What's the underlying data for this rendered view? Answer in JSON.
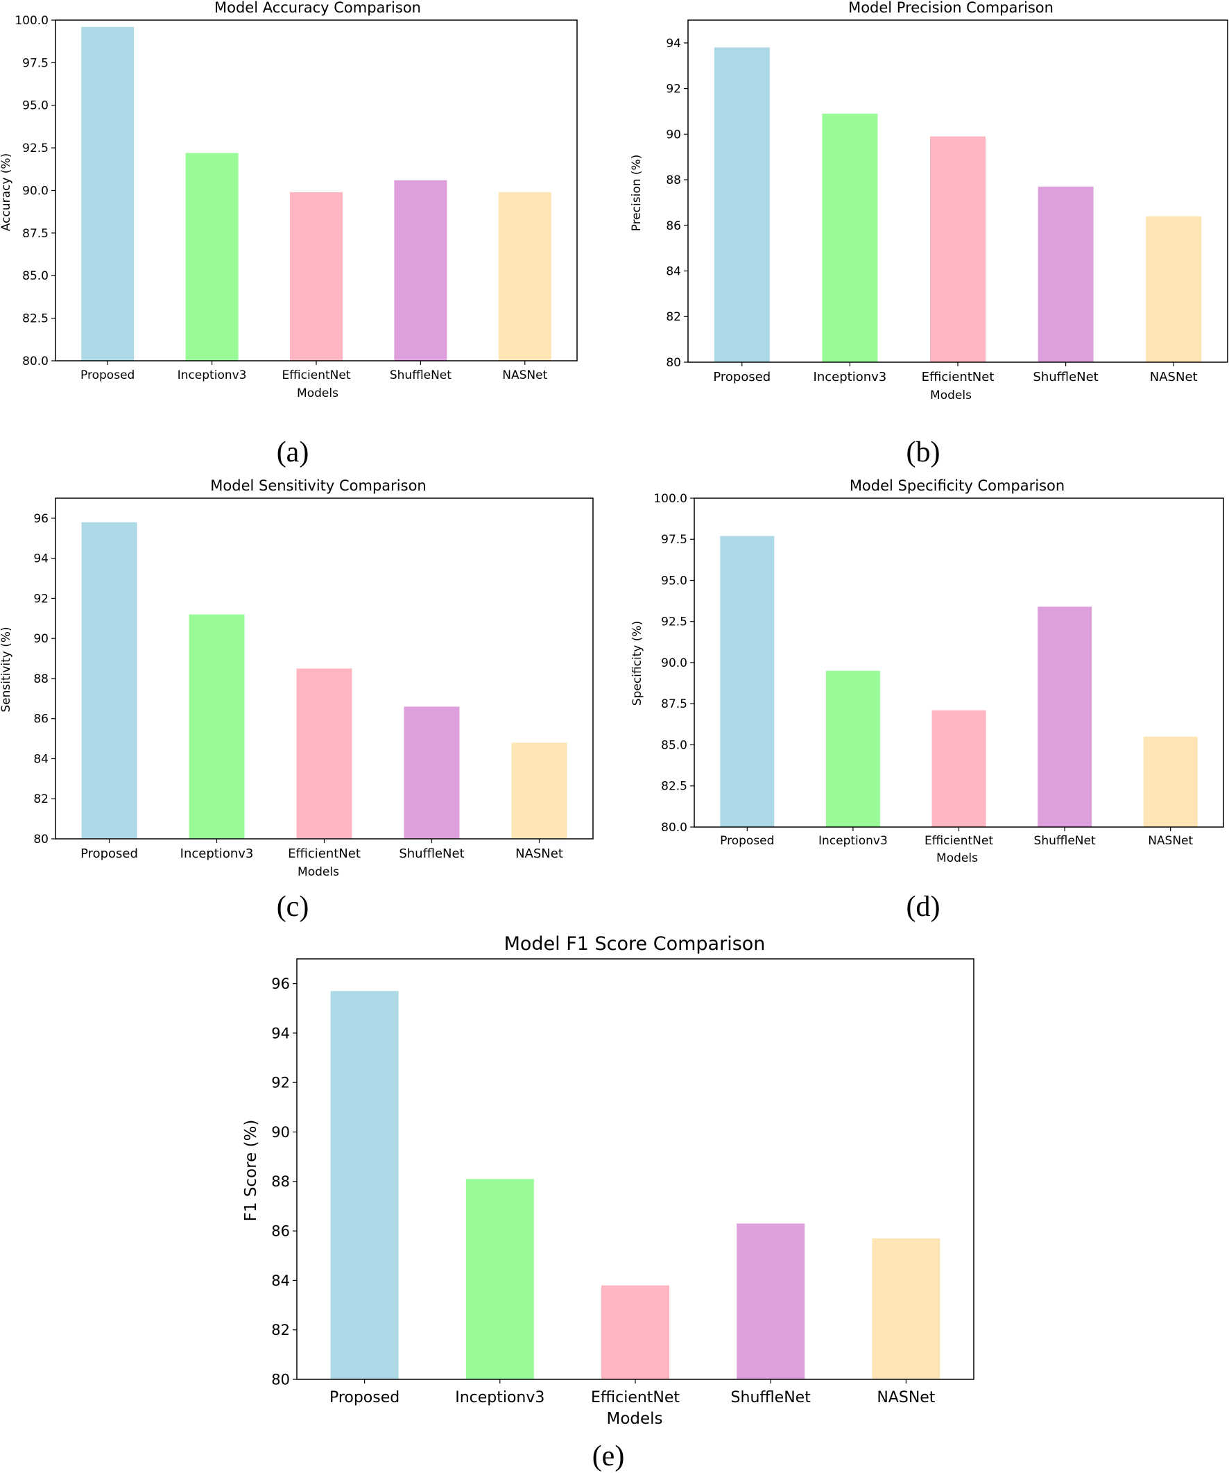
{
  "chart_data": [
    {
      "id": "a",
      "type": "bar",
      "title": "Model Accuracy Comparison",
      "xlabel": "Models",
      "ylabel": "Accuracy (%)",
      "categories": [
        "Proposed",
        "Inceptionv3",
        "EfficientNet",
        "ShuffleNet",
        "NASNet"
      ],
      "values": [
        99.6,
        92.2,
        89.9,
        90.6,
        89.9
      ],
      "ylim": [
        80,
        100
      ],
      "yticks": [
        80.0,
        82.5,
        85.0,
        87.5,
        90.0,
        92.5,
        95.0,
        97.5,
        100.0
      ],
      "ytick_labels": [
        "80.0",
        "82.5",
        "85.0",
        "87.5",
        "90.0",
        "92.5",
        "95.0",
        "97.5",
        "100.0"
      ],
      "colors": [
        "#add8e6",
        "#98fb98",
        "#ffb6c1",
        "#dda0dd",
        "#ffe4b5"
      ],
      "grid": false,
      "panel_label": "(a)"
    },
    {
      "id": "b",
      "type": "bar",
      "title": "Model Precision Comparison",
      "xlabel": "Models",
      "ylabel": "Precision (%)",
      "categories": [
        "Proposed",
        "Inceptionv3",
        "EfficientNet",
        "ShuffleNet",
        "NASNet"
      ],
      "values": [
        93.8,
        90.9,
        89.9,
        87.7,
        86.4
      ],
      "ylim": [
        80,
        95
      ],
      "yticks": [
        80,
        82,
        84,
        86,
        88,
        90,
        92,
        94
      ],
      "ytick_labels": [
        "80",
        "82",
        "84",
        "86",
        "88",
        "90",
        "92",
        "94"
      ],
      "colors": [
        "#add8e6",
        "#98fb98",
        "#ffb6c1",
        "#dda0dd",
        "#ffe4b5"
      ],
      "grid": false,
      "panel_label": "(b)"
    },
    {
      "id": "c",
      "type": "bar",
      "title": "Model Sensitivity Comparison",
      "xlabel": "Models",
      "ylabel": "Sensitivity (%)",
      "categories": [
        "Proposed",
        "Inceptionv3",
        "EfficientNet",
        "ShuffleNet",
        "NASNet"
      ],
      "values": [
        95.8,
        91.2,
        88.5,
        86.6,
        84.8
      ],
      "ylim": [
        80,
        97
      ],
      "yticks": [
        80,
        82,
        84,
        86,
        88,
        90,
        92,
        94,
        96
      ],
      "ytick_labels": [
        "80",
        "82",
        "84",
        "86",
        "88",
        "90",
        "92",
        "94",
        "96"
      ],
      "colors": [
        "#add8e6",
        "#98fb98",
        "#ffb6c1",
        "#dda0dd",
        "#ffe4b5"
      ],
      "grid": false,
      "panel_label": "(c)"
    },
    {
      "id": "d",
      "type": "bar",
      "title": "Model Specificity Comparison",
      "xlabel": "Models",
      "ylabel": "Specificity (%)",
      "categories": [
        "Proposed",
        "Inceptionv3",
        "EfficientNet",
        "ShuffleNet",
        "NASNet"
      ],
      "values": [
        97.7,
        89.5,
        87.1,
        93.4,
        85.5
      ],
      "ylim": [
        80,
        100
      ],
      "yticks": [
        80.0,
        82.5,
        85.0,
        87.5,
        90.0,
        92.5,
        95.0,
        97.5,
        100.0
      ],
      "ytick_labels": [
        "80.0",
        "82.5",
        "85.0",
        "87.5",
        "90.0",
        "92.5",
        "95.0",
        "97.5",
        "100.0"
      ],
      "colors": [
        "#add8e6",
        "#98fb98",
        "#ffb6c1",
        "#dda0dd",
        "#ffe4b5"
      ],
      "grid": false,
      "panel_label": "(d)"
    },
    {
      "id": "e",
      "type": "bar",
      "title": "Model F1 Score Comparison",
      "xlabel": "Models",
      "ylabel": "F1 Score (%)",
      "categories": [
        "Proposed",
        "Inceptionv3",
        "EfficientNet",
        "ShuffleNet",
        "NASNet"
      ],
      "values": [
        95.7,
        88.1,
        83.8,
        86.3,
        85.7
      ],
      "ylim": [
        80,
        97
      ],
      "yticks": [
        80,
        82,
        84,
        86,
        88,
        90,
        92,
        94,
        96
      ],
      "ytick_labels": [
        "80",
        "82",
        "84",
        "86",
        "88",
        "90",
        "92",
        "94",
        "96"
      ],
      "colors": [
        "#add8e6",
        "#98fb98",
        "#ffb6c1",
        "#dda0dd",
        "#ffe4b5"
      ],
      "grid": false,
      "panel_label": "(e)"
    }
  ]
}
